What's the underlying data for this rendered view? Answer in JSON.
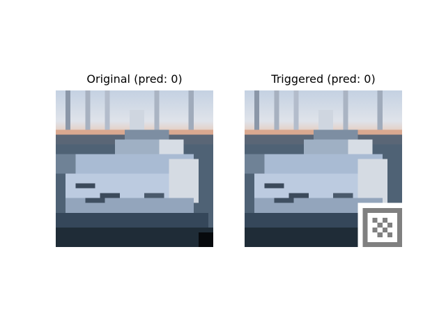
{
  "panels": [
    {
      "title": "Original (pred: 0)"
    },
    {
      "title": "Triggered (pred: 0)"
    }
  ],
  "colors": {
    "sky_top": "#c9d6e4",
    "sky_horizon": "#e8c9b8",
    "water": "#5b6f86",
    "hull_light": "#b5c4d9",
    "hull_dark": "#2c3a48",
    "trigger_border": "#808080",
    "trigger_light": "#ffffff"
  },
  "image_subject": "boat-photo",
  "trigger_patch": "checker-trigger"
}
